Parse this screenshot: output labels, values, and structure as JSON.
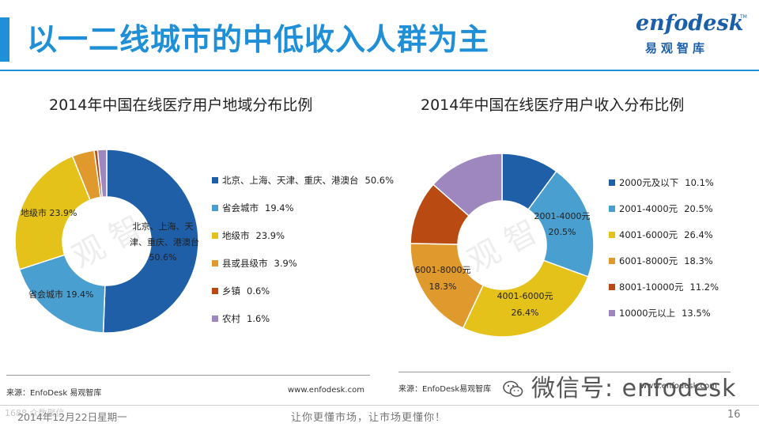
{
  "colors": {
    "accent": "#1F8FD8",
    "title": "#1F8FD8",
    "logo": "#1B5FAA",
    "c_dark_blue": "#1F5FA8",
    "c_light_blue": "#4A9FD1",
    "c_yellow": "#E4C21A",
    "c_orange": "#E0992C",
    "c_brown": "#B84A12",
    "c_purple": "#9E86BE"
  },
  "page": {
    "title": "以一二线城市的中低收入人群为主"
  },
  "logo": {
    "wordmark": "enfodesk",
    "tm": "TM",
    "cn": "易观智库"
  },
  "watermark": {
    "text": "易 观 智 库"
  },
  "chart_data": [
    {
      "type": "pie",
      "style": "donut",
      "title": "2014年中国在线医疗用户地域分布比例",
      "categories": [
        "北京、上海、天津、重庆、港澳台",
        "省会城市",
        "地级市",
        "县或县级市",
        "乡镇",
        "农村"
      ],
      "values": [
        50.6,
        19.4,
        23.9,
        3.9,
        0.6,
        1.6
      ],
      "value_labels": [
        "50.6%",
        "19.4%",
        "23.9%",
        "3.9%",
        "0.6%",
        "1.6%"
      ],
      "colors": [
        "#1F5FA8",
        "#4A9FD1",
        "#E4C21A",
        "#E0992C",
        "#B84A12",
        "#9E86BE"
      ],
      "data_labels": {
        "north": {
          "name": "北京、上海、天",
          "name2": "津、重庆、港澳台",
          "value": "50.6%"
        },
        "provincial": "省会城市 19.4%",
        "prefecture": "地级市 23.9%"
      },
      "legend_position": "right",
      "source": "来源：EnfoDesk 易观智库",
      "website": "www.enfodesk.com"
    },
    {
      "type": "pie",
      "style": "donut",
      "title": "2014年中国在线医疗用户收入分布比例",
      "categories": [
        "2000元及以下",
        "2001-4000元",
        "4001-6000元",
        "6001-8000元",
        "8001-10000元",
        "10000元以上"
      ],
      "values": [
        10.1,
        20.5,
        26.4,
        18.3,
        11.2,
        13.5
      ],
      "value_labels": [
        "10.1%",
        "20.5%",
        "26.4%",
        "18.3%",
        "11.2%",
        "13.5%"
      ],
      "colors": [
        "#1F5FA8",
        "#4A9FD1",
        "#E4C21A",
        "#E0992C",
        "#B84A12",
        "#9E86BE"
      ],
      "data_labels": {
        "s2001": {
          "name": "2001-4000元",
          "value": "20.5%"
        },
        "s4001": {
          "name": "4001-6000元",
          "value": "26.4%"
        },
        "s6001": {
          "name": "6001-8000元",
          "value": "18.3%"
        }
      },
      "legend_position": "right",
      "source": "来源：EnfoDesk易观智库",
      "website": "www.enfodesk.com"
    }
  ],
  "wechat": {
    "label": "微信号: enfodesk"
  },
  "footer": {
    "date": "2014年12月22日星期一",
    "slogan": "让你更懂市场，让市场更懂你！",
    "page": "16",
    "corner_watermark": "1688 众数聚信"
  }
}
